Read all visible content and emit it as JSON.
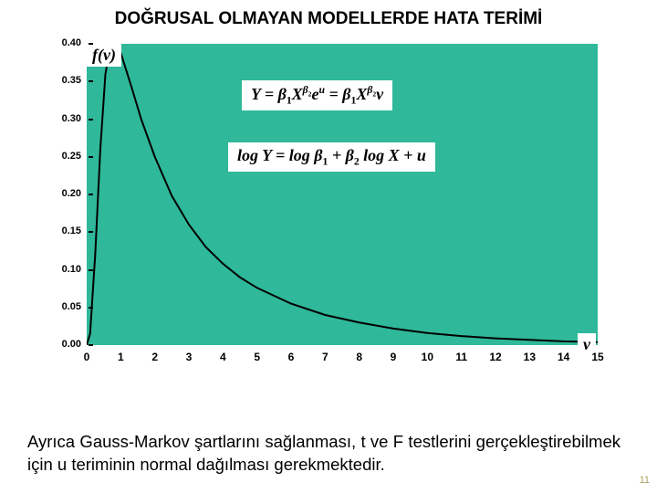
{
  "slide": {
    "title": "DOĞRUSAL OLMAYAN MODELLERDE HATA TERİMİ",
    "page_number": "11"
  },
  "chart": {
    "type": "line",
    "background_color": "#2fb89a",
    "plot_line_color": "#000000",
    "plot_line_width": 2,
    "y_axis_label": "f(v)",
    "x_axis_label": "v",
    "label_fontsize": 18,
    "tick_fontsize": 11,
    "xlim": [
      0,
      15
    ],
    "ylim": [
      0.0,
      0.4
    ],
    "yticks": [
      "0.40",
      "0.35",
      "0.30",
      "0.25",
      "0.20",
      "0.15",
      "0.10",
      "0.05",
      "0.00"
    ],
    "xticks": [
      "0",
      "1",
      "2",
      "3",
      "4",
      "5",
      "6",
      "7",
      "8",
      "9",
      "10",
      "11",
      "12",
      "13",
      "14",
      "15"
    ],
    "curve_points": [
      [
        0.0,
        0.0
      ],
      [
        0.1,
        0.015
      ],
      [
        0.25,
        0.12
      ],
      [
        0.4,
        0.26
      ],
      [
        0.55,
        0.36
      ],
      [
        0.7,
        0.398
      ],
      [
        0.85,
        0.4
      ],
      [
        1.0,
        0.388
      ],
      [
        1.3,
        0.345
      ],
      [
        1.6,
        0.3
      ],
      [
        2.0,
        0.25
      ],
      [
        2.5,
        0.198
      ],
      [
        3.0,
        0.16
      ],
      [
        3.5,
        0.13
      ],
      [
        4.0,
        0.108
      ],
      [
        4.5,
        0.09
      ],
      [
        5.0,
        0.076
      ],
      [
        6.0,
        0.055
      ],
      [
        7.0,
        0.04
      ],
      [
        8.0,
        0.03
      ],
      [
        9.0,
        0.022
      ],
      [
        10.0,
        0.016
      ],
      [
        11.0,
        0.012
      ],
      [
        12.0,
        0.009
      ],
      [
        13.0,
        0.007
      ],
      [
        14.0,
        0.005
      ],
      [
        15.0,
        0.004
      ]
    ]
  },
  "equations": {
    "eq1_html": "Y = β<span class='sub'>1</span>X<span class='sup'>β<span class='sub'>2</span></span>e<span class='sup'>u</span> = β<span class='sub'>1</span>X<span class='sup'>β<span class='sub'>2</span></span>v",
    "eq2_html": "log Y = log β<span class='sub'>1</span> + β<span class='sub'>2</span> log X + u"
  },
  "body": {
    "text": "Ayrıca Gauss-Markov şartlarını sağlanması, t ve F testlerini gerçekleştirebilmek için u teriminin normal dağılması gerekmektedir."
  },
  "style": {
    "title_fontsize": 19,
    "body_fontsize": 18.5,
    "eq_box_bg": "#ffffff",
    "page_num_color": "#b0a060"
  }
}
